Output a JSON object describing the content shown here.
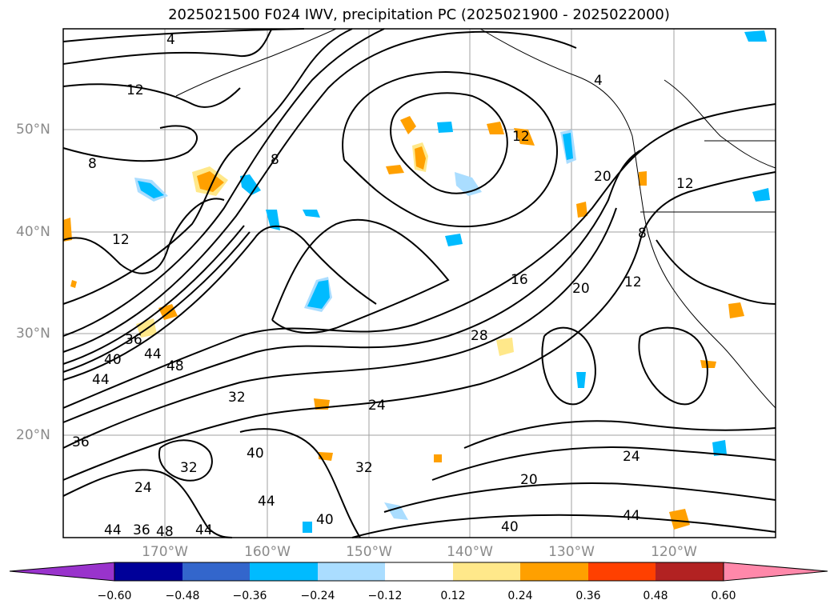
{
  "title": "2025021500 F024 IWV, precipitation PC (2025021900 - 2025022000)",
  "longitude_labels": [
    "170°W",
    "160°W",
    "150°W",
    "140°W",
    "130°W",
    "120°W"
  ],
  "latitude_labels": [
    "50°N",
    "40°N",
    "30°N",
    "20°N"
  ],
  "colorbar": {
    "colors": [
      "#9933cc",
      "#000099",
      "#3366cc",
      "#00bbff",
      "#aaddff",
      "#ffffff",
      "#ffe88a",
      "#ffa000",
      "#ff4000",
      "#b22222",
      "#ff88aa"
    ],
    "tick_labels": [
      "−0.60",
      "−0.48",
      "−0.36",
      "−0.24",
      "−0.12",
      "0.12",
      "0.24",
      "0.36",
      "0.48",
      "0.60"
    ]
  },
  "contour_labels": [
    "4",
    "12",
    "8",
    "16",
    "20",
    "24",
    "28",
    "32",
    "36",
    "40",
    "44",
    "48"
  ],
  "map_labels": [
    {
      "text": "4"
    },
    {
      "text": "12"
    },
    {
      "text": "8"
    },
    {
      "text": "8"
    },
    {
      "text": "12"
    },
    {
      "text": "12"
    },
    {
      "text": "4"
    },
    {
      "text": "20"
    },
    {
      "text": "12"
    },
    {
      "text": "8"
    },
    {
      "text": "12"
    },
    {
      "text": "16"
    },
    {
      "text": "20"
    },
    {
      "text": "28"
    },
    {
      "text": "36"
    },
    {
      "text": "40"
    },
    {
      "text": "44"
    },
    {
      "text": "44"
    },
    {
      "text": "48"
    },
    {
      "text": "32"
    },
    {
      "text": "24"
    },
    {
      "text": "40"
    },
    {
      "text": "32"
    },
    {
      "text": "32"
    },
    {
      "text": "24"
    },
    {
      "text": "36"
    },
    {
      "text": "44"
    },
    {
      "text": "40"
    },
    {
      "text": "44"
    },
    {
      "text": "36"
    },
    {
      "text": "48"
    },
    {
      "text": "44"
    },
    {
      "text": "20"
    },
    {
      "text": "40"
    },
    {
      "text": "24"
    },
    {
      "text": "44"
    }
  ]
}
